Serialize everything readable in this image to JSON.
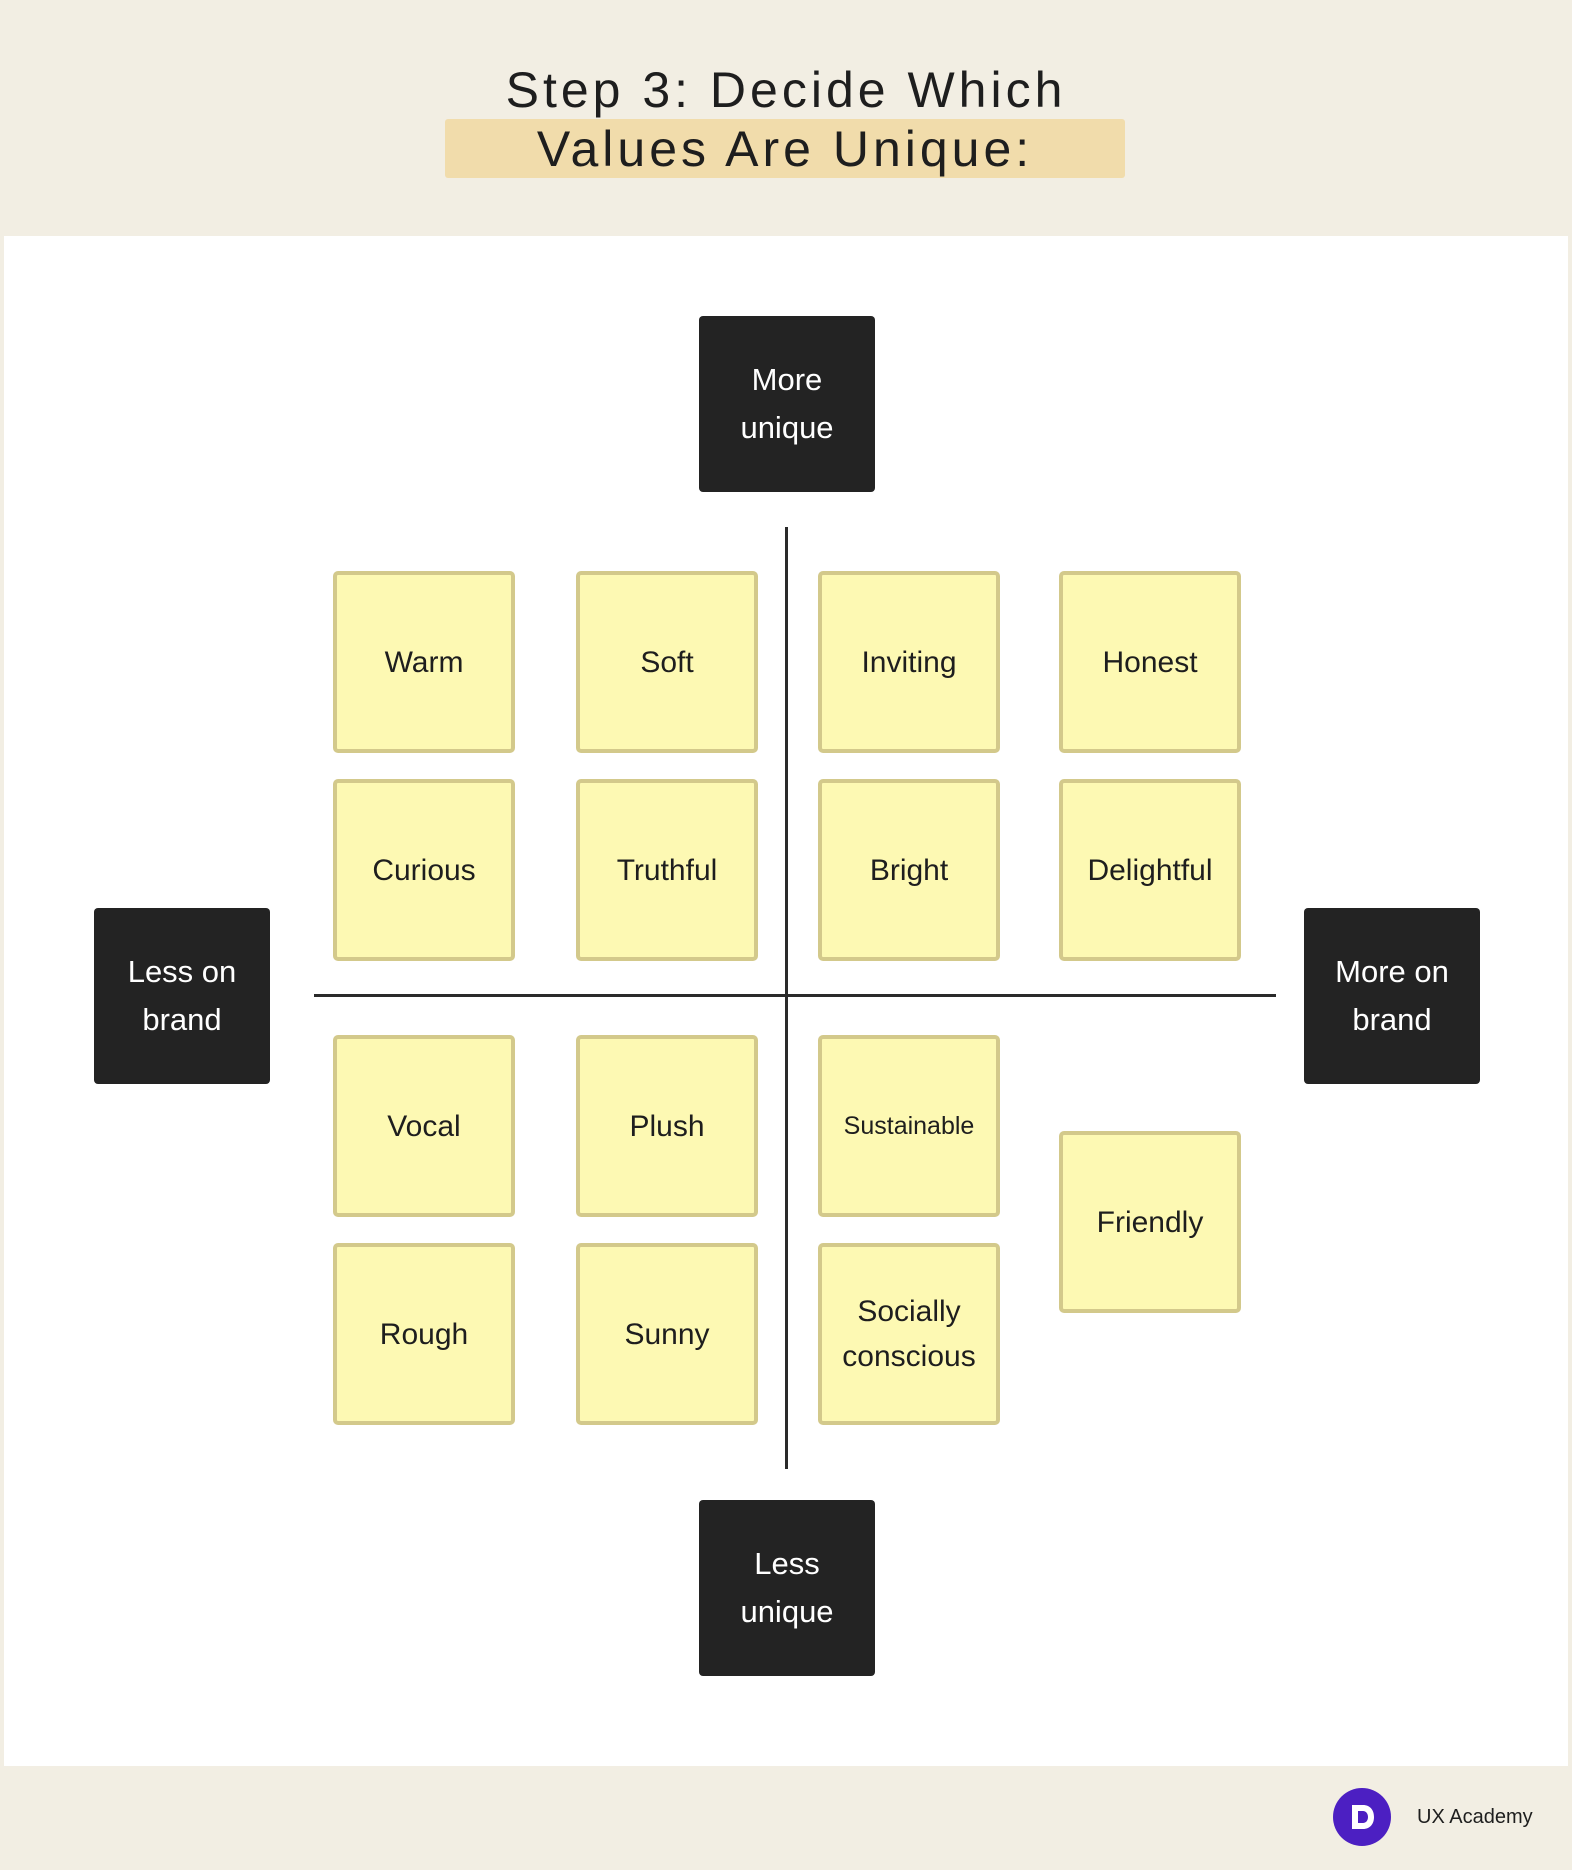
{
  "title": {
    "line1": "Step 3: Decide Which",
    "line2": "Values Are Unique:"
  },
  "axes": {
    "top": "More unique",
    "bottom": "Less unique",
    "left": "Less on brand",
    "right": "More on brand"
  },
  "quadrants": {
    "top_left": [
      "Warm",
      "Soft",
      "Curious",
      "Truthful"
    ],
    "top_right": [
      "Inviting",
      "Honest",
      "Bright",
      "Delightful"
    ],
    "bottom_left": [
      "Vocal",
      "Plush",
      "Rough",
      "Sunny"
    ],
    "bottom_right": [
      "Sustainable",
      "Friendly",
      "Socially conscious"
    ]
  },
  "footer": {
    "brand": "UX Academy",
    "logo_icon": "ux-academy-logo-icon"
  },
  "colors": {
    "background": "#f2eee3",
    "highlight": "#f1dcab",
    "note_fill": "#fdf9b3",
    "note_border": "#d3c98b",
    "label_box": "#232323",
    "brand": "#4c1fc2"
  }
}
